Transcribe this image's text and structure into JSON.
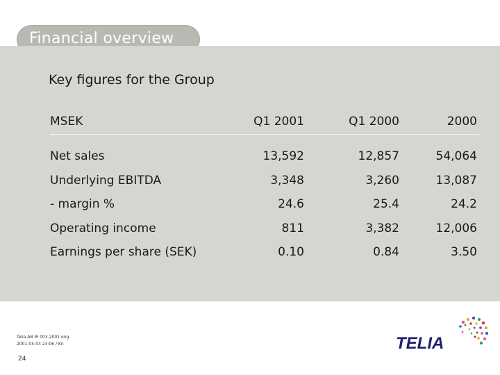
{
  "header": {
    "title": "Financial overview"
  },
  "subtitle": "Key figures for the Group",
  "table": {
    "columns": [
      "MSEK",
      "Q1 2001",
      "Q1 2000",
      "2000"
    ],
    "rows": [
      {
        "label": "Net sales",
        "q1_2001": "13,592",
        "q1_2000": "12,857",
        "fy_2000": "54,064"
      },
      {
        "label": "Underlying EBITDA",
        "q1_2001": "3,348",
        "q1_2000": "3,260",
        "fy_2000": "13,087"
      },
      {
        "label": "- margin %",
        "q1_2001": "24.6",
        "q1_2000": "25.4",
        "fy_2000": "24.2"
      },
      {
        "label": "Operating income",
        "q1_2001": "811",
        "q1_2000": "3,382",
        "fy_2000": "12,006"
      },
      {
        "label": "Earnings per share (SEK)",
        "q1_2001": "0.10",
        "q1_2000": "0.84",
        "fy_2000": "3.50"
      }
    ]
  },
  "footer": {
    "line1": "Telia AB IR 003-2001 eng",
    "line2": "2001-05-03 23:06 / Kn",
    "page_number": "24"
  },
  "logo": {
    "text": "TELIA",
    "color": "#1e1e6e",
    "accent": "#c8102e"
  }
}
